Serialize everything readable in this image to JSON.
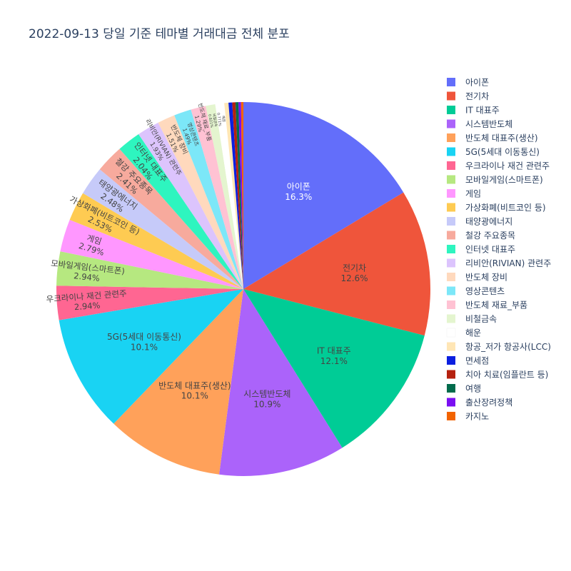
{
  "chart_data": {
    "type": "pie",
    "title": "2022-09-13 당일 기준 테마별 거래대금 전체 분포",
    "legend_position": "right",
    "slices": [
      {
        "label": "아이폰",
        "value": 16.3,
        "pct": "16.3%",
        "color": "#636efa"
      },
      {
        "label": "전기차",
        "value": 12.6,
        "pct": "12.6%",
        "color": "#EF553B"
      },
      {
        "label": "IT 대표주",
        "value": 12.1,
        "pct": "12.1%",
        "color": "#00cc96"
      },
      {
        "label": "시스템반도체",
        "value": 10.9,
        "pct": "10.9%",
        "color": "#ab63fa"
      },
      {
        "label": "반도체 대표주(생산)",
        "value": 10.1,
        "pct": "10.1%",
        "color": "#FFA15A"
      },
      {
        "label": "5G(5세대 이동통신)",
        "value": 10.1,
        "pct": "10.1%",
        "color": "#19d3f3"
      },
      {
        "label": "우크라이나 재건 관련주",
        "value": 2.94,
        "pct": "2.94%",
        "color": "#FF6692"
      },
      {
        "label": "모바일게임(스마트폰)",
        "value": 2.94,
        "pct": "2.94%",
        "color": "#B6E880"
      },
      {
        "label": "게임",
        "value": 2.79,
        "pct": "2.79%",
        "color": "#FF97FF"
      },
      {
        "label": "가상화폐(비트코인 등)",
        "value": 2.53,
        "pct": "2.53%",
        "color": "#FECB52"
      },
      {
        "label": "태양광에너지",
        "value": 2.48,
        "pct": "2.48%",
        "color": "#c6caf9"
      },
      {
        "label": "철강 주요종목",
        "value": 2.41,
        "pct": "2.41%",
        "color": "#f7aa9d"
      },
      {
        "label": "인터넷 대표주",
        "value": 2.04,
        "pct": "2.04%",
        "color": "#2ef5bf"
      },
      {
        "label": "리비안(RIVIAN) 관련주",
        "value": 1.93,
        "pct": "1.93%",
        "color": "#dcc4fd"
      },
      {
        "label": "반도체 장비",
        "value": 1.51,
        "pct": "1.51%",
        "color": "#ffd9bd"
      },
      {
        "label": "영상콘텐츠",
        "value": 1.49,
        "pct": "1.49%",
        "color": "#7ce7f8"
      },
      {
        "label": "반도체 재료_부품",
        "value": 1.29,
        "pct": "1.29%",
        "color": "#ffc2d3"
      },
      {
        "label": "비철금속",
        "value": 0.821,
        "pct": "0.821%",
        "color": "#e4f5cf"
      },
      {
        "label": "해운",
        "value": 0.771,
        "pct": "0.771%",
        "color": "#ffffff"
      },
      {
        "label": "항공_저가 항공사(LCC)",
        "value": 0.36,
        "pct": "",
        "color": "#ffe6b5"
      },
      {
        "label": "면세점",
        "value": 0.32,
        "pct": "",
        "color": "#0b1fe0"
      },
      {
        "label": "치아 치료(임플란트 등)",
        "value": 0.28,
        "pct": "",
        "color": "#b5210f"
      },
      {
        "label": "여행",
        "value": 0.25,
        "pct": "",
        "color": "#026b4c"
      },
      {
        "label": "출산장려정책",
        "value": 0.22,
        "pct": "",
        "color": "#7a0ff2"
      },
      {
        "label": "카지노",
        "value": 0.2,
        "pct": "",
        "color": "#f26300"
      }
    ]
  }
}
